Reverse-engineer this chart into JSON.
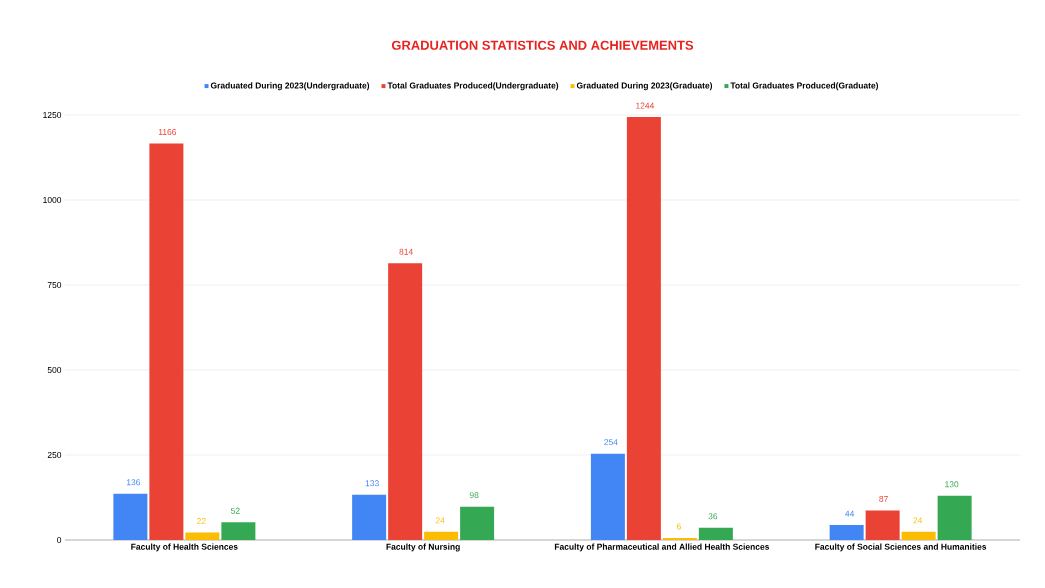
{
  "chart_data": {
    "type": "bar",
    "title": "GRADUATION STATISTICS AND ACHIEVEMENTS",
    "categories": [
      "Faculty of Health Sciences",
      "Faculty of Nursing",
      "Faculty of Pharmaceutical and Allied Health Sciences",
      "Faculty of Social Sciences and Humanities"
    ],
    "series": [
      {
        "name": "Graduated During 2023(Undergraduate)",
        "color": "#4285f4",
        "values": [
          136,
          133,
          254,
          44
        ]
      },
      {
        "name": "Total Graduates Produced(Undergraduate)",
        "color": "#ea4335",
        "values": [
          1166,
          814,
          1244,
          87
        ]
      },
      {
        "name": "Graduated During 2023(Graduate)",
        "color": "#fbbc04",
        "values": [
          22,
          24,
          6,
          24
        ]
      },
      {
        "name": "Total Graduates Produced(Graduate)",
        "color": "#34a853",
        "values": [
          52,
          98,
          36,
          130
        ]
      }
    ],
    "ylim": [
      0,
      1250
    ],
    "yticks": [
      0,
      250,
      500,
      750,
      1000,
      1250
    ],
    "grid": "y",
    "legend": "top",
    "data_labels": true
  }
}
